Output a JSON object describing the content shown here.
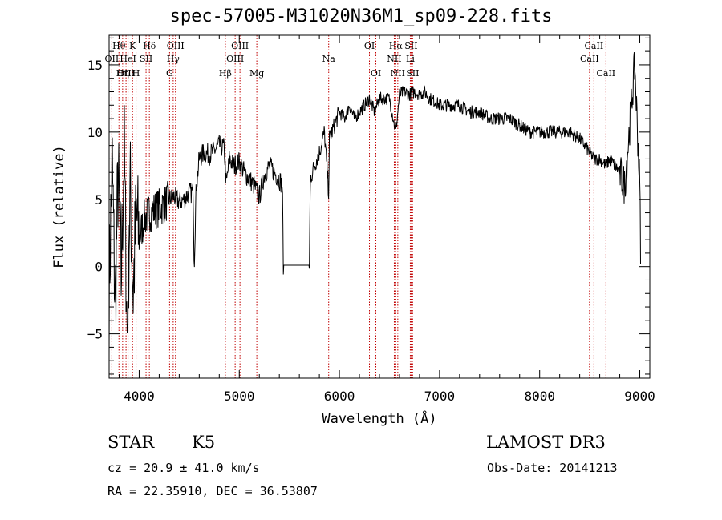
{
  "chart_data": {
    "type": "line",
    "title": "spec-57005-M31020N36M1_sp09-228.fits",
    "xlabel": "Wavelength (Å)",
    "ylabel": "Flux (relative)",
    "xlim": [
      3700,
      9100
    ],
    "ylim": [
      -8.3,
      17.2
    ],
    "x_ticks": [
      4000,
      5000,
      6000,
      7000,
      8000,
      9000
    ],
    "x_tick_labels": [
      "4000",
      "5000",
      "6000",
      "7000",
      "8000",
      "9000"
    ],
    "y_ticks": [
      -5,
      0,
      5,
      10,
      15
    ],
    "y_tick_labels": [
      "−5",
      "0",
      "5",
      "10",
      "15"
    ],
    "grid": false,
    "series": [
      {
        "name": "flux",
        "color": "#000000",
        "x": [
          3700,
          3730,
          3760,
          3790,
          3820,
          3850,
          3880,
          3910,
          3940,
          3970,
          4000,
          4050,
          4100,
          4150,
          4200,
          4250,
          4300,
          4350,
          4400,
          4450,
          4500,
          4540,
          4550,
          4570,
          4580,
          4600,
          4650,
          4700,
          4750,
          4800,
          4850,
          4870,
          4900,
          4950,
          5000,
          5050,
          5100,
          5150,
          5180,
          5200,
          5250,
          5300,
          5350,
          5400,
          5430,
          5440,
          5700,
          5710,
          5750,
          5800,
          5850,
          5893,
          5900,
          5950,
          6000,
          6050,
          6100,
          6150,
          6200,
          6250,
          6300,
          6350,
          6400,
          6450,
          6500,
          6563,
          6600,
          6650,
          6700,
          6750,
          6800,
          6850,
          6900,
          6950,
          7000,
          7100,
          7200,
          7300,
          7400,
          7500,
          7600,
          7700,
          7800,
          7900,
          8000,
          8100,
          8200,
          8300,
          8400,
          8450,
          8498,
          8542,
          8600,
          8662,
          8700,
          8750,
          8800,
          8850,
          8900,
          8950,
          9000,
          9010
        ],
        "y": [
          -2.0,
          8.0,
          -3.0,
          7.0,
          -1.0,
          9.0,
          -5.0,
          6.0,
          -2.0,
          4.0,
          2.0,
          3.5,
          4.0,
          4.2,
          4.4,
          4.6,
          5.0,
          5.2,
          4.8,
          5.0,
          5.5,
          5.5,
          0.0,
          6.0,
          6.5,
          8.0,
          8.5,
          8.3,
          8.6,
          9.0,
          8.8,
          6.0,
          8.0,
          7.5,
          7.8,
          7.0,
          6.5,
          6.0,
          5.5,
          5.2,
          6.8,
          7.5,
          7.0,
          6.5,
          6.0,
          0.1,
          0.1,
          6.5,
          7.5,
          8.5,
          10.0,
          5.5,
          9.5,
          10.5,
          11.5,
          11.0,
          12.0,
          11.0,
          11.5,
          12.0,
          12.5,
          11.5,
          12.5,
          12.5,
          12.5,
          10.0,
          12.8,
          13.0,
          12.8,
          13.0,
          12.8,
          13.0,
          12.5,
          12.3,
          12.0,
          12.0,
          12.0,
          11.5,
          11.5,
          11.0,
          11.0,
          11.0,
          10.5,
          10.0,
          10.0,
          10.0,
          10.0,
          10.0,
          9.5,
          9.0,
          8.5,
          8.0,
          8.0,
          7.5,
          8.0,
          7.5,
          7.0,
          6.0,
          10.5,
          15.0,
          6.0,
          0.5
        ]
      }
    ],
    "lines": [
      {
        "name": "Hθ",
        "x": 3798,
        "row": 1
      },
      {
        "name": "OII",
        "x": 3727,
        "row": 2
      },
      {
        "name": "OIII",
        "x": 3869,
        "row": 3
      },
      {
        "name": "Hη",
        "x": 3835,
        "row": 3
      },
      {
        "name": "K",
        "x": 3934,
        "row": 1
      },
      {
        "name": "HeI",
        "x": 3889,
        "row": 2
      },
      {
        "name": "SII",
        "x": 4069,
        "row": 2
      },
      {
        "name": "H",
        "x": 3969,
        "row": 3
      },
      {
        "name": "Hδ",
        "x": 4102,
        "row": 1
      },
      {
        "name": "OIII",
        "x": 4363,
        "row": 1
      },
      {
        "name": "Hγ",
        "x": 4340,
        "row": 2
      },
      {
        "name": "G",
        "x": 4304,
        "row": 3
      },
      {
        "name": "Hβ",
        "x": 4861,
        "row": 3
      },
      {
        "name": "OIII",
        "x": 5007,
        "row": 1
      },
      {
        "name": "OIII",
        "x": 4959,
        "row": 2
      },
      {
        "name": "Mg",
        "x": 5175,
        "row": 3
      },
      {
        "name": "Na",
        "x": 5893,
        "row": 2
      },
      {
        "name": "OI",
        "x": 6300,
        "row": 1
      },
      {
        "name": "OI",
        "x": 6364,
        "row": 3
      },
      {
        "name": "Hα",
        "x": 6563,
        "row": 1
      },
      {
        "name": "NII",
        "x": 6548,
        "row": 2
      },
      {
        "name": "NII",
        "x": 6583,
        "row": 3
      },
      {
        "name": "SII",
        "x": 6716,
        "row": 1
      },
      {
        "name": "Li",
        "x": 6708,
        "row": 2
      },
      {
        "name": "SII",
        "x": 6731,
        "row": 3
      },
      {
        "name": "CaII",
        "x": 8542,
        "row": 1
      },
      {
        "name": "CaII",
        "x": 8498,
        "row": 2
      },
      {
        "name": "CaII",
        "x": 8662,
        "row": 3
      }
    ],
    "line_color": "#c00000"
  },
  "info": {
    "object_type": "STAR",
    "subclass": "K5",
    "survey": "LAMOST DR3",
    "cz": "cz = 20.9 ± 41.0 km/s",
    "obs_date": "Obs-Date: 20141213",
    "coords": "RA =  22.35910, DEC =  36.53807"
  }
}
